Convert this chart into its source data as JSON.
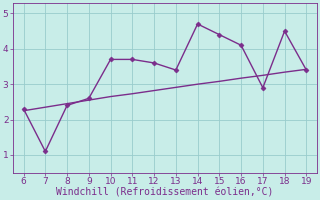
{
  "x": [
    6,
    7,
    8,
    9,
    10,
    11,
    12,
    13,
    14,
    15,
    16,
    17,
    18,
    19
  ],
  "y_data": [
    2.3,
    1.1,
    2.4,
    2.6,
    3.7,
    3.7,
    3.6,
    3.4,
    4.7,
    4.4,
    4.1,
    2.9,
    4.5,
    3.4
  ],
  "y_trend": [
    2.25,
    2.35,
    2.45,
    2.55,
    2.65,
    2.73,
    2.82,
    2.91,
    3.0,
    3.08,
    3.17,
    3.25,
    3.34,
    3.42
  ],
  "line_color": "#7b2d8b",
  "bg_color": "#c8ede8",
  "grid_color": "#99cccc",
  "xlabel": "Windchill (Refroidissement éolien,°C)",
  "xlabel_color": "#7b2d8b",
  "xlabel_fontsize": 7,
  "tick_color": "#7b2d8b",
  "tick_fontsize": 6.5,
  "ylim": [
    0.5,
    5.3
  ],
  "xlim": [
    5.5,
    19.5
  ],
  "yticks": [
    1,
    2,
    3,
    4,
    5
  ],
  "xticks": [
    6,
    7,
    8,
    9,
    10,
    11,
    12,
    13,
    14,
    15,
    16,
    17,
    18,
    19
  ],
  "marker": "D",
  "marker_size": 2.5,
  "linewidth": 1.0
}
